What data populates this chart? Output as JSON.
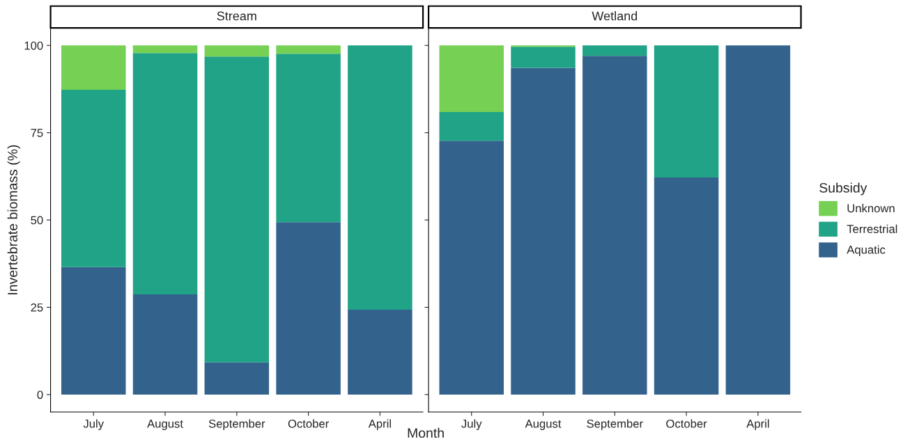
{
  "chart_data": [
    {
      "type": "bar",
      "title": "Stream",
      "ylabel": "Invertebrate biomass (%)",
      "xlabel": "Month",
      "stacked": true,
      "categories": [
        "July",
        "August",
        "September",
        "October",
        "April"
      ],
      "ylim": [
        -5,
        105
      ],
      "yticks": [
        0,
        25,
        50,
        75,
        100
      ],
      "grid": false,
      "legend": "right",
      "legend_title": "Subsidy",
      "series": [
        {
          "name": "Aquatic",
          "color": "#33638d",
          "values": [
            36.5,
            28.7,
            9.2,
            49.4,
            24.3
          ]
        },
        {
          "name": "Terrestrial",
          "color": "#20a386",
          "values": [
            50.8,
            69.1,
            87.6,
            48.2,
            75.7
          ]
        },
        {
          "name": "Unknown",
          "color": "#75d054",
          "values": [
            12.7,
            2.2,
            3.2,
            2.4,
            0
          ]
        }
      ]
    },
    {
      "type": "bar",
      "title": "Wetland",
      "stacked": true,
      "categories": [
        "July",
        "August",
        "September",
        "October",
        "April"
      ],
      "ylim": [
        -5,
        105
      ],
      "yticks": [
        0,
        25,
        50,
        75,
        100
      ],
      "tick_labels": "x",
      "grid": false,
      "series": [
        {
          "color": "#33638d",
          "values": [
            72.7,
            93.6,
            97.0,
            62.2,
            100
          ]
        },
        {
          "color": "#20a386",
          "values": [
            8.2,
            6.0,
            3.0,
            37.8,
            0
          ]
        },
        {
          "color": "#75d054",
          "values": [
            19.1,
            0.4,
            0,
            0,
            0
          ]
        }
      ]
    }
  ]
}
